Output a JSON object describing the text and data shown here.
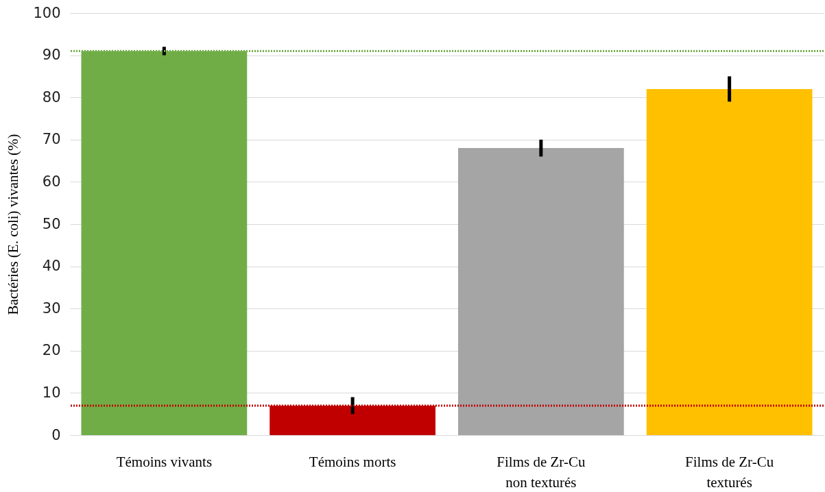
{
  "chart_data": {
    "type": "bar",
    "ylabel": "Bactéries (E. coli) vivantes (%)",
    "categories": [
      "Témoins vivants",
      "Témoins morts",
      "Films de Zr-Cu non texturés",
      "Films de Zr-Cu texturés"
    ],
    "values": [
      91,
      7,
      68,
      82
    ],
    "colors": [
      "#70ad47",
      "#c00000",
      "#a5a5a5",
      "#ffc000"
    ],
    "errors": [
      1,
      2,
      2,
      3
    ],
    "ylim": [
      0,
      100
    ],
    "yticks": [
      0,
      10,
      20,
      30,
      40,
      50,
      60,
      70,
      80,
      90,
      100
    ],
    "grid": "y",
    "ref_lines": [
      {
        "axis": "y",
        "value": 91,
        "color": "#70ad47",
        "line_style": "dotted"
      },
      {
        "axis": "y",
        "value": 7,
        "color": "#c00000",
        "line_style": "dotted"
      }
    ]
  }
}
